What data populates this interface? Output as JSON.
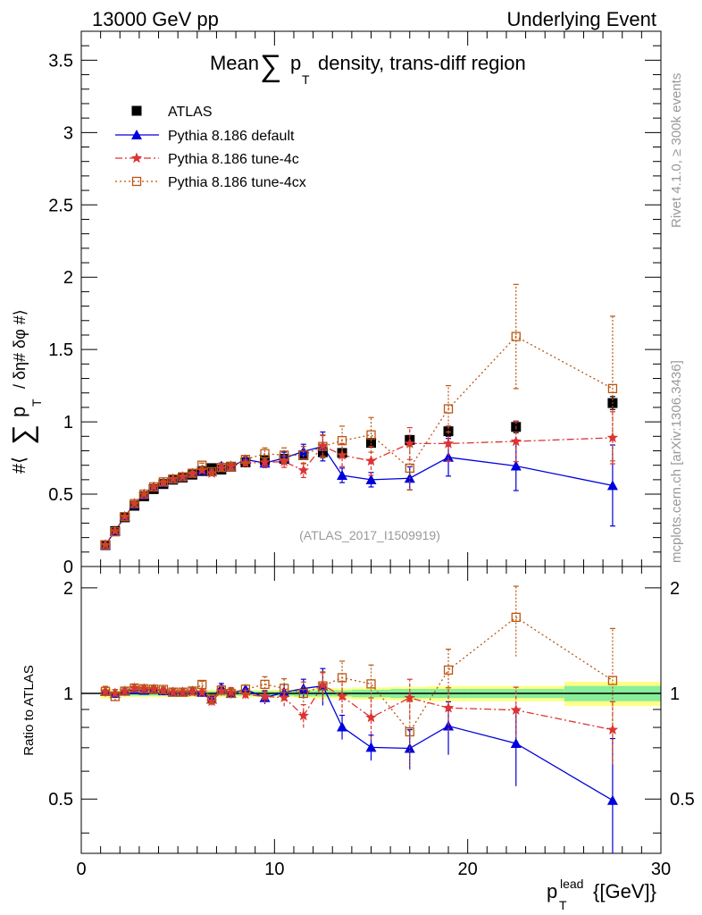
{
  "header": {
    "left": "13000 GeV pp",
    "right": "Underlying Event"
  },
  "side_labels": {
    "rivet": "Rivet 4.1.0, ≥ 300k events",
    "mcplots": "mcplots.cern.ch [arXiv:1306.3436]"
  },
  "chart_data": {
    "type": "line",
    "title": "Mean ∑ pT density, trans-diff region",
    "title_parts": {
      "mean": "Mean",
      "sum": "∑",
      "p": "p",
      "sub": "T",
      "rest": "density, trans-diff region"
    },
    "analysis_tag": "(ATLAS_2017_I1509919)",
    "xlabel": {
      "base": "p",
      "sub": "T",
      "sup": "lead",
      "unit": "{[GeV]}"
    },
    "ylabel": {
      "open": "#⟨",
      "sum": "∑",
      "p": "p",
      "sub": "T",
      "rest": "/ δη# δφ #⟩"
    },
    "ratio_ylabel": "Ratio to ATLAS",
    "xlim": [
      0,
      30
    ],
    "ylim": [
      0,
      3.7
    ],
    "ratio_ylim": [
      0.35,
      2.3
    ],
    "x_ticks": [
      0,
      10,
      20,
      30
    ],
    "x_tick_labels": [
      "0",
      "10",
      "20",
      "30"
    ],
    "y_ticks": [
      0,
      0.5,
      1,
      1.5,
      2,
      2.5,
      3,
      3.5
    ],
    "y_tick_labels": [
      "0",
      "0.5",
      "1",
      "1.5",
      "2",
      "2.5",
      "3",
      "3.5"
    ],
    "ratio_ticks": [
      0.5,
      1,
      2
    ],
    "ratio_tick_labels": [
      "0.5",
      "1",
      "2"
    ],
    "x": [
      1.25,
      1.75,
      2.25,
      2.75,
      3.25,
      3.75,
      4.25,
      4.75,
      5.25,
      5.75,
      6.25,
      6.75,
      7.25,
      7.75,
      8.5,
      9.5,
      10.5,
      11.5,
      12.5,
      13.5,
      15.0,
      17.0,
      19.0,
      22.5,
      27.5
    ],
    "bin_edges": [
      1,
      1.5,
      2,
      2.5,
      3,
      3.5,
      4,
      4.5,
      5,
      5.5,
      6,
      6.5,
      7,
      7.5,
      8,
      9,
      10,
      11,
      12,
      13,
      14,
      16,
      18,
      20,
      25,
      30
    ],
    "series": [
      {
        "name": "ATLAS",
        "color": "#000000",
        "marker": "square-filled",
        "values": [
          0.148,
          0.245,
          0.34,
          0.42,
          0.485,
          0.535,
          0.57,
          0.6,
          0.615,
          0.635,
          0.66,
          0.68,
          0.67,
          0.69,
          0.72,
          0.735,
          0.745,
          0.77,
          0.79,
          0.785,
          0.855,
          0.875,
          0.935,
          0.965,
          1.13
        ],
        "errors": [
          0.004,
          0.005,
          0.006,
          0.007,
          0.008,
          0.009,
          0.01,
          0.01,
          0.011,
          0.012,
          0.012,
          0.013,
          0.014,
          0.015,
          0.015,
          0.018,
          0.02,
          0.022,
          0.025,
          0.027,
          0.028,
          0.03,
          0.035,
          0.04,
          0.045
        ],
        "band_inner": [
          0.015,
          0.015,
          0.015,
          0.015,
          0.015,
          0.015,
          0.015,
          0.015,
          0.015,
          0.015,
          0.015,
          0.015,
          0.015,
          0.015,
          0.015,
          0.015,
          0.015,
          0.02,
          0.02,
          0.02,
          0.025,
          0.03,
          0.03,
          0.03,
          0.05
        ],
        "band_outer": [
          0.035,
          0.03,
          0.025,
          0.025,
          0.025,
          0.025,
          0.025,
          0.025,
          0.025,
          0.025,
          0.025,
          0.025,
          0.025,
          0.025,
          0.025,
          0.025,
          0.025,
          0.03,
          0.035,
          0.035,
          0.04,
          0.045,
          0.05,
          0.05,
          0.08
        ]
      },
      {
        "name": "Pythia 8.186 default",
        "color": "#0000dd",
        "marker": "triangle-filled",
        "linestyle": "solid",
        "values": [
          0.15,
          0.245,
          0.345,
          0.43,
          0.495,
          0.55,
          0.58,
          0.605,
          0.62,
          0.645,
          0.665,
          0.655,
          0.695,
          0.69,
          0.74,
          0.715,
          0.75,
          0.795,
          0.83,
          0.63,
          0.6,
          0.61,
          0.755,
          0.695,
          0.56
        ],
        "errors": [
          0.005,
          0.006,
          0.007,
          0.008,
          0.009,
          0.01,
          0.01,
          0.012,
          0.013,
          0.014,
          0.015,
          0.017,
          0.02,
          0.022,
          0.02,
          0.03,
          0.04,
          0.05,
          0.1,
          0.05,
          0.05,
          0.08,
          0.13,
          0.17,
          0.28
        ]
      },
      {
        "name": "Pythia 8.186 tune-4c",
        "color": "#dd3333",
        "marker": "star-filled",
        "linestyle": "dashdot",
        "values": [
          0.15,
          0.245,
          0.345,
          0.435,
          0.5,
          0.55,
          0.58,
          0.605,
          0.62,
          0.64,
          0.665,
          0.645,
          0.68,
          0.695,
          0.715,
          0.72,
          0.725,
          0.665,
          0.835,
          0.77,
          0.73,
          0.85,
          0.85,
          0.865,
          0.89
        ],
        "errors": [
          0.005,
          0.006,
          0.007,
          0.008,
          0.009,
          0.01,
          0.01,
          0.012,
          0.013,
          0.014,
          0.015,
          0.017,
          0.02,
          0.022,
          0.02,
          0.03,
          0.04,
          0.05,
          0.07,
          0.08,
          0.1,
          0.11,
          0.12,
          0.14,
          0.18
        ]
      },
      {
        "name": "Pythia 8.186 tune-4cx",
        "color": "#bb5511",
        "marker": "square-open",
        "linestyle": "dotted",
        "values": [
          0.15,
          0.24,
          0.345,
          0.435,
          0.5,
          0.55,
          0.585,
          0.605,
          0.62,
          0.645,
          0.7,
          0.655,
          0.685,
          0.69,
          0.74,
          0.78,
          0.77,
          0.77,
          0.83,
          0.87,
          0.91,
          0.68,
          1.09,
          1.59,
          1.23
        ],
        "errors": [
          0.005,
          0.006,
          0.007,
          0.008,
          0.009,
          0.01,
          0.01,
          0.012,
          0.013,
          0.014,
          0.015,
          0.017,
          0.02,
          0.022,
          0.02,
          0.04,
          0.05,
          0.06,
          0.08,
          0.1,
          0.12,
          0.15,
          0.16,
          0.36,
          0.5
        ]
      }
    ]
  }
}
